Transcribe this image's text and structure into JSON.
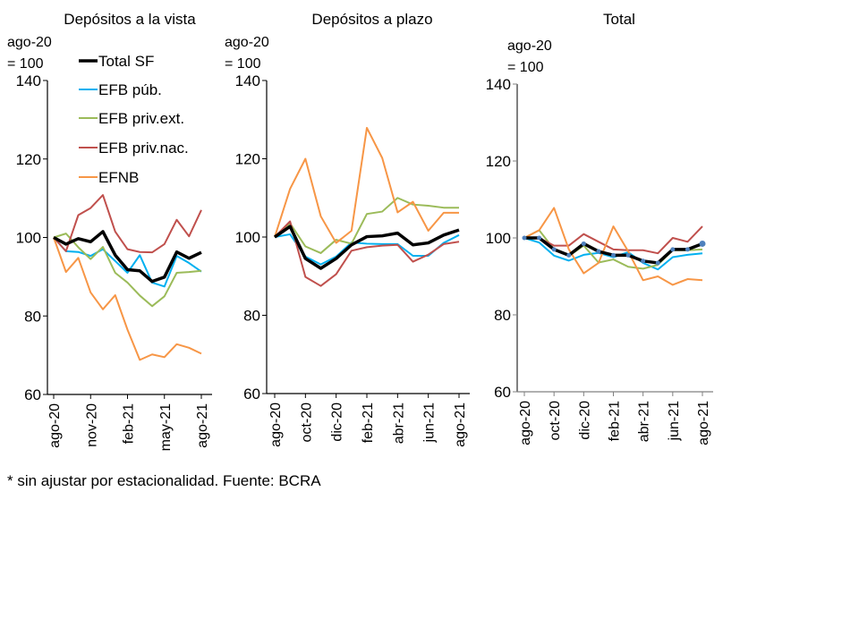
{
  "footnote": "* sin ajustar por estacionalidad. Fuente: BCRA",
  "colors": {
    "Total SF": "#000000",
    "EFB púb.": "#00b0f0",
    "EFB priv.ext.": "#9bbb59",
    "EFB priv.nac.": "#c0504d",
    "EFNB": "#f79646"
  },
  "chart_data": [
    {
      "type": "line",
      "title": "Depósitos a la vista",
      "ylabel_line1": "ago-20",
      "ylabel_line2": "= 100",
      "ylim": [
        60,
        140
      ],
      "yticks": [
        60,
        80,
        100,
        120,
        140
      ],
      "x": [
        "ago-20",
        "sep-20",
        "oct-20",
        "nov-20",
        "dic-20",
        "ene-21",
        "feb-21",
        "mar-21",
        "abr-21",
        "may-21",
        "jun-21",
        "jul-21",
        "ago-21"
      ],
      "xtick_labels": [
        "ago-20",
        "nov-20",
        "feb-21",
        "may-21",
        "ago-21"
      ],
      "legend": "top-left",
      "series": [
        {
          "name": "Total SF",
          "values": [
            100,
            98.3,
            99.7,
            98.9,
            101.5,
            95.5,
            91.8,
            91.5,
            88.8,
            89.9,
            96.3,
            94.7,
            96.2
          ]
        },
        {
          "name": "EFB púb.",
          "values": [
            100,
            96.5,
            96.3,
            95.3,
            97,
            94,
            91,
            95.5,
            88.5,
            87.5,
            95.3,
            93.5,
            91.3
          ]
        },
        {
          "name": "EFB priv.ext.",
          "values": [
            100,
            101,
            97.5,
            94.5,
            97.6,
            91,
            88.5,
            85.2,
            82.5,
            85,
            91,
            91.2,
            91.5
          ]
        },
        {
          "name": "EFB priv.nac.",
          "values": [
            100,
            96.5,
            105.7,
            107.5,
            110.8,
            101.5,
            97,
            96.3,
            96.2,
            98.3,
            104.5,
            100.3,
            107
          ]
        },
        {
          "name": "EFNB",
          "values": [
            100,
            91.2,
            94.8,
            86,
            81.7,
            85.3,
            76.5,
            68.8,
            70.2,
            69.5,
            72.8,
            71.9,
            70.4
          ]
        }
      ]
    },
    {
      "type": "line",
      "title": "Depósitos a plazo",
      "ylabel_line1": "ago-20",
      "ylabel_line2": "= 100",
      "ylim": [
        60,
        140
      ],
      "yticks": [
        60,
        80,
        100,
        120,
        140
      ],
      "x": [
        "ago-20",
        "sep-20",
        "oct-20",
        "nov-20",
        "dic-20",
        "ene-21",
        "feb-21",
        "mar-21",
        "abr-21",
        "may-21",
        "jun-21",
        "jul-21",
        "ago-21"
      ],
      "xtick_labels": [
        "ago-20",
        "oct-20",
        "dic-20",
        "feb-21",
        "abr-21",
        "jun-21",
        "ago-21"
      ],
      "series": [
        {
          "name": "Total SF",
          "values": [
            100,
            102.7,
            94.5,
            92,
            94.5,
            98,
            100.1,
            100.3,
            101,
            98,
            98.5,
            100.5,
            101.8
          ]
        },
        {
          "name": "EFB púb.",
          "values": [
            100,
            100.7,
            95,
            93,
            95,
            98.6,
            98.3,
            98.2,
            98.2,
            95.2,
            95.2,
            98.5,
            100.5
          ]
        },
        {
          "name": "EFB priv.ext.",
          "values": [
            100,
            103.5,
            97.6,
            95.9,
            99.3,
            98.3,
            105.9,
            106.5,
            110,
            108.3,
            108,
            107.5,
            107.5
          ]
        },
        {
          "name": "EFB priv.nac.",
          "values": [
            100,
            104,
            89.8,
            87.5,
            90.5,
            96.5,
            97.4,
            97.8,
            98,
            93.7,
            95.5,
            98.2,
            98.8
          ]
        },
        {
          "name": "EFNB",
          "values": [
            100,
            112.3,
            120,
            105.3,
            98.5,
            101.6,
            127.9,
            120.2,
            106.3,
            109,
            101.6,
            106.2,
            106.2
          ]
        }
      ]
    },
    {
      "type": "line",
      "title": "Total",
      "ylabel_line1": "ago-20",
      "ylabel_line2": "= 100",
      "ylim": [
        60,
        140
      ],
      "yticks": [
        60,
        80,
        100,
        120,
        140
      ],
      "x": [
        "ago-20",
        "sep-20",
        "oct-20",
        "nov-20",
        "dic-20",
        "ene-21",
        "feb-21",
        "mar-21",
        "abr-21",
        "may-21",
        "jun-21",
        "jul-21",
        "ago-21"
      ],
      "xtick_labels": [
        "ago-20",
        "oct-20",
        "dic-20",
        "feb-21",
        "abr-21",
        "jun-21",
        "ago-21"
      ],
      "series": [
        {
          "name": "Total SF",
          "values": [
            100,
            100,
            97,
            95.5,
            98.5,
            96.5,
            95.5,
            95.5,
            94,
            93.5,
            97,
            97,
            98.5
          ]
        },
        {
          "name": "EFB púb.",
          "values": [
            100,
            98.8,
            95.4,
            94.1,
            95.6,
            96.1,
            95,
            96.3,
            93.5,
            91.8,
            95,
            95.6,
            96
          ]
        },
        {
          "name": "EFB priv.ext.",
          "values": [
            100,
            102,
            97,
            95.3,
            98,
            93.6,
            94.4,
            92.5,
            92,
            93,
            96.8,
            96.8,
            97
          ]
        },
        {
          "name": "EFB priv.nac.",
          "values": [
            100,
            100,
            98,
            98,
            101,
            99,
            97,
            96.8,
            96.8,
            96,
            100,
            99,
            103
          ]
        },
        {
          "name": "EFNB",
          "values": [
            100,
            102,
            107.8,
            97,
            90.8,
            93.5,
            103,
            96.5,
            89,
            90,
            87.8,
            89.3,
            89
          ]
        }
      ]
    }
  ]
}
